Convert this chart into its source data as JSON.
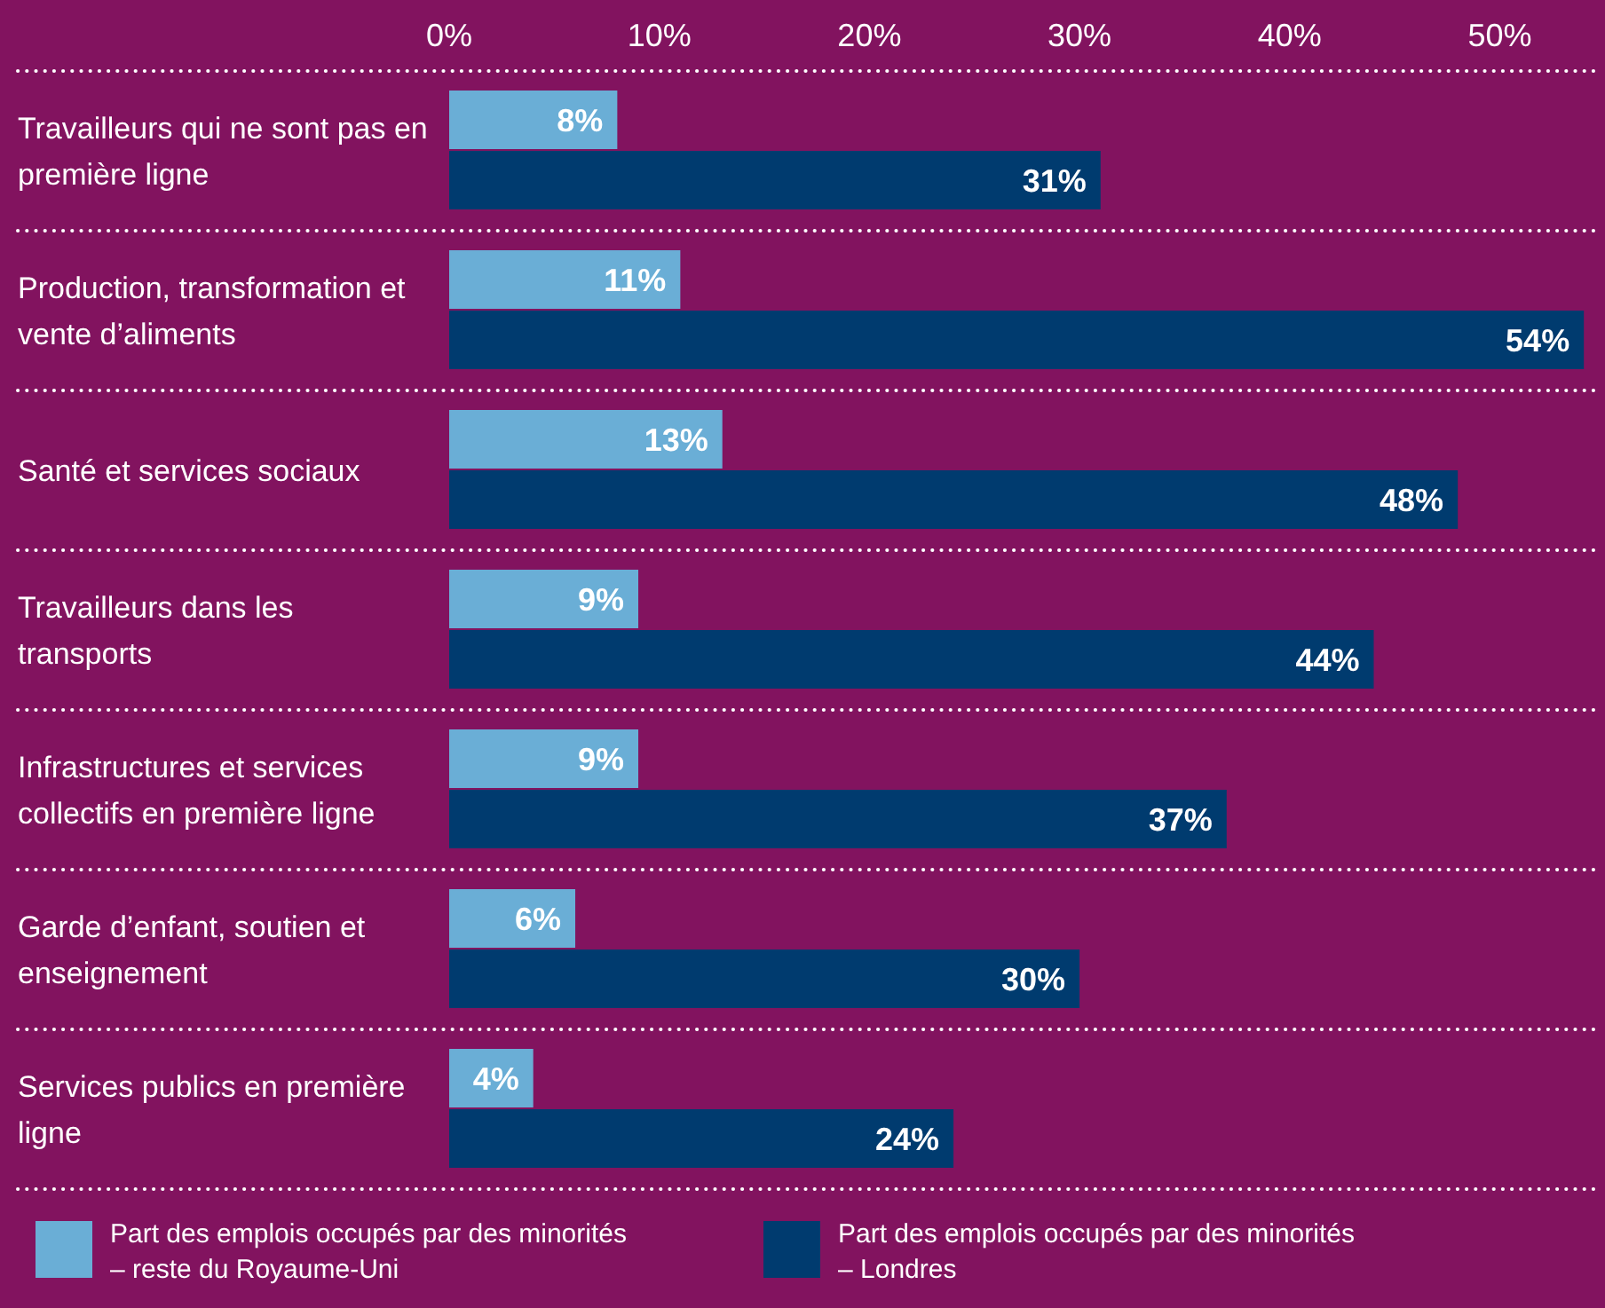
{
  "chart_data": {
    "type": "bar",
    "orientation": "horizontal",
    "legend": "bottom",
    "grid": false,
    "categories": [
      "Travailleurs qui ne sont pas en première ligne",
      "Production, transformation et vente d’aliments",
      "Santé et services sociaux",
      "Travailleurs dans les transports",
      "Infrastructures et services collectifs en première ligne",
      "Garde d’enfant, soutien et enseignement",
      "Services publics en première ligne"
    ],
    "xlim": [
      0,
      54.5
    ],
    "xticks": [
      {
        "value": 0,
        "label": "0%"
      },
      {
        "value": 10,
        "label": "10%"
      },
      {
        "value": 20,
        "label": "20%"
      },
      {
        "value": 30,
        "label": "30%"
      },
      {
        "value": 40,
        "label": "40%"
      },
      {
        "value": 50,
        "label": "50%"
      }
    ],
    "series": [
      {
        "name": "Part des emplois occupés par des minorités – reste du Royaume-Uni",
        "color": "#6aaed6",
        "values": [
          8,
          11,
          13,
          9,
          9,
          6,
          4
        ],
        "value_labels": [
          "8%",
          "11%",
          "13%",
          "9%",
          "9%",
          "6%",
          "4%"
        ]
      },
      {
        "name": "Part des emplois occupés par des minorités – Londres",
        "color": "#003b6f",
        "values": [
          31,
          54,
          48,
          44,
          37,
          30,
          24
        ],
        "value_labels": [
          "31%",
          "54%",
          "48%",
          "44%",
          "37%",
          "30%",
          "24%"
        ]
      }
    ]
  }
}
